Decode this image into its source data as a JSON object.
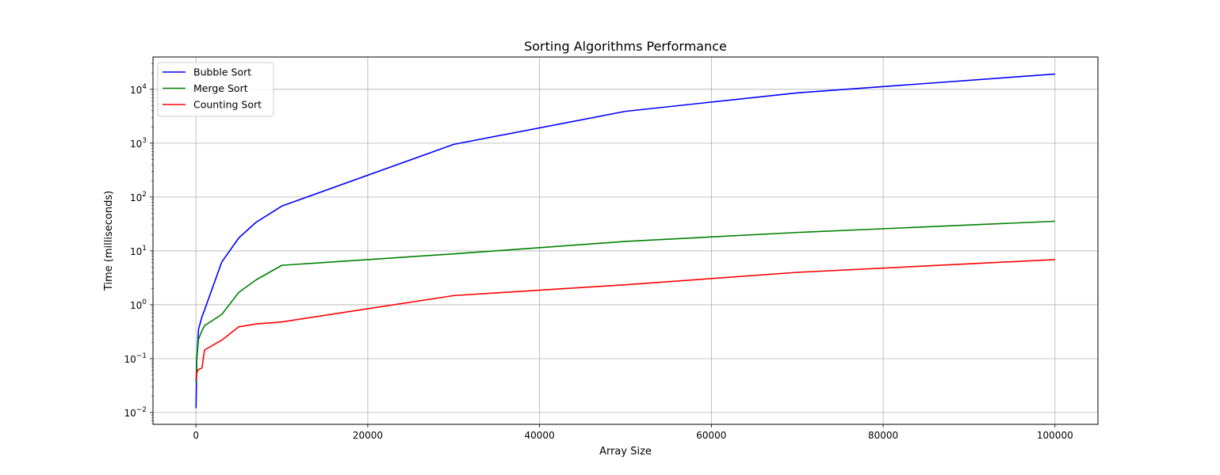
{
  "chart_data": {
    "type": "line",
    "title": "Sorting Algorithms Performance",
    "xlabel": "Array Size",
    "ylabel": "Time (milliseconds)",
    "xlim": [
      -5000,
      105000
    ],
    "ylim_log10": [
      -2.22,
      4.6
    ],
    "yscale": "log",
    "grid": true,
    "legend_position": "top-left",
    "x_ticks": [
      0,
      20000,
      40000,
      60000,
      80000,
      100000
    ],
    "x_tick_labels": [
      "0",
      "20000",
      "40000",
      "60000",
      "80000",
      "100000"
    ],
    "y_ticks": [
      0.01,
      0.1,
      1,
      10,
      100,
      1000,
      10000
    ],
    "y_tick_labels": [
      {
        "base": "10",
        "exp": "−2"
      },
      {
        "base": "10",
        "exp": "−1"
      },
      {
        "base": "10",
        "exp": "0"
      },
      {
        "base": "10",
        "exp": "1"
      },
      {
        "base": "10",
        "exp": "2"
      },
      {
        "base": "10",
        "exp": "3"
      },
      {
        "base": "10",
        "exp": "4"
      }
    ],
    "x": [
      10,
      100,
      300,
      700,
      1000,
      3000,
      5000,
      7000,
      10000,
      30000,
      50000,
      70000,
      100000
    ],
    "series": [
      {
        "name": "Bubble Sort",
        "color": "#0000ff",
        "values": [
          0.012,
          0.1,
          0.35,
          0.6,
          0.8,
          6.2,
          17.5,
          34,
          68,
          950,
          3900,
          8600,
          19200
        ]
      },
      {
        "name": "Merge Sort",
        "color": "#008000",
        "values": [
          0.035,
          0.1,
          0.23,
          0.33,
          0.41,
          0.66,
          1.7,
          2.9,
          5.4,
          8.8,
          15,
          22,
          35.5
        ]
      },
      {
        "name": "Counting Sort",
        "color": "#ff0000",
        "values": [
          0.04,
          0.055,
          0.063,
          0.067,
          0.145,
          0.22,
          0.39,
          0.44,
          0.48,
          1.48,
          2.35,
          4.0,
          6.9
        ]
      }
    ]
  }
}
